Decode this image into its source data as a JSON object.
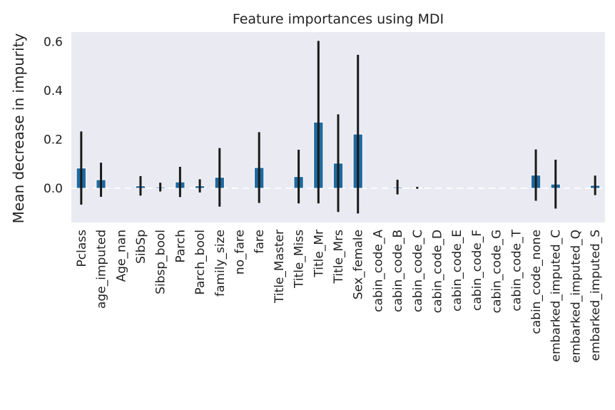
{
  "chart_data": {
    "type": "bar",
    "title": "Feature importances using MDI",
    "xlabel": "",
    "ylabel": "Mean decrease in impurity",
    "ylim": [
      -0.14,
      0.64
    ],
    "yticks": [
      "0.0",
      "0.2",
      "0.4",
      "0.6"
    ],
    "ytick_values": [
      0.0,
      0.2,
      0.4,
      0.6
    ],
    "grid": false,
    "categories": [
      "Pclass",
      "age_imputed",
      "Age_nan",
      "SibSp",
      "Sibsp_bool",
      "Parch",
      "Parch_bool",
      "family_size",
      "no_fare",
      "fare",
      "Title_Master",
      "Title_Miss",
      "Title_Mr",
      "Title_Mrs",
      "Sex_female",
      "cabin_code_A",
      "cabin_code_B",
      "cabin_code_C",
      "cabin_code_D",
      "cabin_code_E",
      "cabin_code_F",
      "cabin_code_G",
      "cabin_code_T",
      "cabin_code_none",
      "embarked_imputed_C",
      "embarked_imputed_Q",
      "embarked_imputed_S"
    ],
    "values": [
      0.083,
      0.035,
      0.0,
      0.01,
      0.005,
      0.026,
      0.01,
      0.045,
      0.0,
      0.085,
      0.0,
      0.048,
      0.271,
      0.103,
      0.222,
      0.0,
      0.005,
      0.002,
      0.0,
      0.0,
      0.0,
      0.0,
      0.0,
      0.054,
      0.017,
      0.0,
      0.012
    ],
    "errors": [
      0.15,
      0.07,
      0.0,
      0.04,
      0.018,
      0.062,
      0.027,
      0.12,
      0.0,
      0.145,
      0.0,
      0.11,
      0.333,
      0.2,
      0.325,
      0.0,
      0.03,
      0.004,
      0.0,
      0.0,
      0.0,
      0.0,
      0.0,
      0.105,
      0.1,
      0.0,
      0.04
    ],
    "colors": {
      "bar": "#1f6a9f",
      "error": "#1a1a1a",
      "plot_bg": "#eaeaf2",
      "baseline": "#ffffff"
    }
  }
}
